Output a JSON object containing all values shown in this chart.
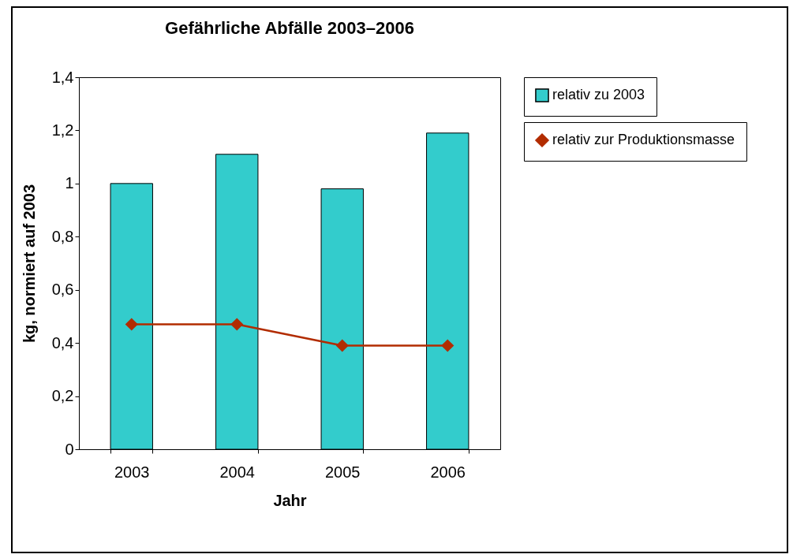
{
  "chart_data": {
    "type": "bar",
    "title": "Gefährliche Abfälle 2003–2006",
    "xlabel": "Jahr",
    "ylabel": "kg, normiert auf 2003",
    "categories": [
      "2003",
      "2004",
      "2005",
      "2006"
    ],
    "series": [
      {
        "name": "relativ zu 2003",
        "color": "#33cccc",
        "values": [
          1.0,
          1.11,
          0.98,
          1.19
        ]
      },
      {
        "name": "relativ zur Produktionsmasse",
        "type": "line",
        "color": "#b22c00",
        "marker": "diamond",
        "line_style": "solid",
        "values": [
          0.47,
          0.47,
          0.39,
          0.39
        ]
      }
    ],
    "ylim": [
      0,
      1.4
    ],
    "yticks": [
      0,
      {
        "value": 0.2,
        "label": "0,2"
      },
      {
        "value": 0.4,
        "label": "0,4"
      },
      {
        "value": 0.6,
        "label": "0,6"
      },
      {
        "value": 0.8,
        "label": "0,8"
      },
      1,
      {
        "value": 1.2,
        "label": "1,2"
      },
      {
        "value": 1.4,
        "label": "1,4"
      }
    ],
    "grid": false,
    "legend": "right"
  }
}
